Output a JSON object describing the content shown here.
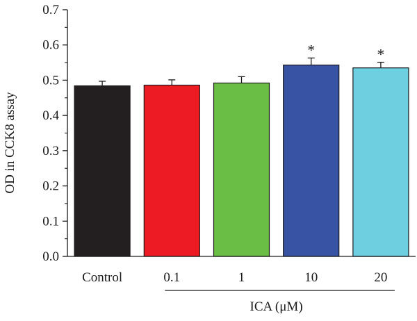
{
  "chart_data": {
    "type": "bar",
    "categories": [
      "Control",
      "0.1",
      "1",
      "10",
      "20"
    ],
    "values": [
      0.484,
      0.486,
      0.492,
      0.543,
      0.535
    ],
    "errors": [
      0.013,
      0.015,
      0.018,
      0.02,
      0.016
    ],
    "significance": [
      "",
      "",
      "",
      "*",
      "*"
    ],
    "colors": [
      "#231f20",
      "#ed1c24",
      "#6abd45",
      "#3953a4",
      "#6dcfe0"
    ],
    "ylabel": "OD in CCK8 assay",
    "xlabel": "ICA (μM)",
    "ylim": [
      0.0,
      0.7
    ],
    "yticks": [
      "0.0",
      "0.1",
      "0.2",
      "0.3",
      "0.4",
      "0.5",
      "0.6",
      "0.7"
    ]
  }
}
